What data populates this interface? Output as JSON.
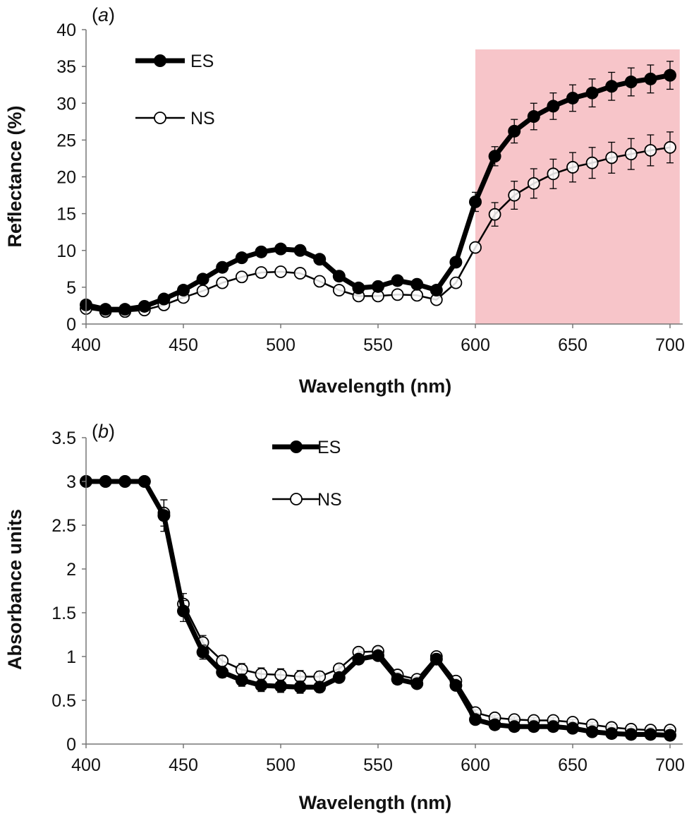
{
  "figure": {
    "panels": [
      {
        "panel_label": "(a)",
        "xlabel": "Wavelength (nm)",
        "ylabel": "Reflectance (%)",
        "legend": [
          "ES",
          "NS"
        ]
      },
      {
        "panel_label": "(b)",
        "xlabel": "Wavelength (nm)",
        "ylabel": "Absorbance units",
        "legend": [
          "ES",
          "NS"
        ]
      }
    ]
  },
  "chart_data": [
    {
      "type": "line",
      "panel_label": "(a)",
      "xlabel": "Wavelength (nm)",
      "ylabel": "Reflectance (%)",
      "xlim": [
        400,
        700
      ],
      "ylim": [
        0,
        40
      ],
      "x_ticks": [
        "400",
        "450",
        "500",
        "550",
        "600",
        "650",
        "700"
      ],
      "y_ticks": [
        "0",
        "5",
        "10",
        "15",
        "20",
        "25",
        "30",
        "35",
        "40"
      ],
      "x_tick_values": [
        400,
        450,
        500,
        550,
        600,
        650,
        700
      ],
      "y_tick_values": [
        0,
        5,
        10,
        15,
        20,
        25,
        30,
        35,
        40
      ],
      "grid": false,
      "legend_position": "top-left",
      "highlight_region": {
        "x_from": 600,
        "x_to": 705,
        "color": "#f7c5c9"
      },
      "x": [
        400,
        410,
        420,
        430,
        440,
        450,
        460,
        470,
        480,
        490,
        500,
        510,
        520,
        530,
        540,
        550,
        560,
        570,
        580,
        590,
        600,
        610,
        620,
        630,
        640,
        650,
        660,
        670,
        680,
        690,
        700
      ],
      "series": [
        {
          "name": "ES",
          "marker": "filled-circle",
          "color": "#000000",
          "values": [
            2.6,
            2.0,
            2.0,
            2.4,
            3.4,
            4.6,
            6.1,
            7.7,
            9.0,
            9.8,
            10.2,
            10.0,
            8.8,
            6.5,
            4.9,
            5.1,
            5.9,
            5.4,
            4.6,
            8.4,
            16.6,
            22.8,
            26.2,
            28.2,
            29.6,
            30.7,
            31.4,
            32.3,
            32.9,
            33.3,
            33.8
          ],
          "errors": [
            0,
            0,
            0,
            0,
            0,
            0,
            0,
            0,
            0,
            0,
            0,
            0,
            0,
            0,
            0,
            0,
            0,
            0,
            0,
            0,
            1.3,
            1.3,
            1.6,
            1.8,
            1.8,
            1.8,
            1.9,
            1.9,
            1.9,
            1.9,
            1.9
          ]
        },
        {
          "name": "NS",
          "marker": "open-circle",
          "color": "#000000",
          "values": [
            2.1,
            1.7,
            1.7,
            1.9,
            2.6,
            3.6,
            4.5,
            5.6,
            6.4,
            7.0,
            7.1,
            6.9,
            5.8,
            4.6,
            3.8,
            3.8,
            4.0,
            3.9,
            3.3,
            5.6,
            10.4,
            14.9,
            17.5,
            19.1,
            20.4,
            21.3,
            21.9,
            22.6,
            23.1,
            23.6,
            24.0
          ],
          "errors": [
            0,
            0,
            0,
            0,
            0,
            0,
            0,
            0,
            0,
            0,
            0,
            0,
            0,
            0,
            0,
            0,
            0,
            0,
            0,
            0,
            0,
            1.6,
            1.9,
            2.0,
            2.0,
            2.0,
            2.1,
            2.1,
            2.1,
            2.1,
            2.1
          ]
        }
      ]
    },
    {
      "type": "line",
      "panel_label": "(b)",
      "xlabel": "Wavelength (nm)",
      "ylabel": "Absorbance units",
      "xlim": [
        400,
        700
      ],
      "ylim": [
        0,
        3.5
      ],
      "x_ticks": [
        "400",
        "450",
        "500",
        "550",
        "600",
        "650",
        "700"
      ],
      "y_ticks": [
        "0",
        "0.5",
        "1",
        "1.5",
        "2",
        "2.5",
        "3",
        "3.5"
      ],
      "x_tick_values": [
        400,
        450,
        500,
        550,
        600,
        650,
        700
      ],
      "y_tick_values": [
        0,
        0.5,
        1,
        1.5,
        2,
        2.5,
        3,
        3.5
      ],
      "grid": false,
      "legend_position": "top-center",
      "x": [
        400,
        410,
        420,
        430,
        440,
        450,
        460,
        470,
        480,
        490,
        500,
        510,
        520,
        530,
        540,
        550,
        560,
        570,
        580,
        590,
        600,
        610,
        620,
        630,
        640,
        650,
        660,
        670,
        680,
        690,
        700
      ],
      "series": [
        {
          "name": "ES",
          "marker": "filled-circle",
          "color": "#000000",
          "values": [
            3.0,
            3.0,
            3.0,
            3.0,
            2.61,
            1.52,
            1.05,
            0.82,
            0.73,
            0.67,
            0.66,
            0.65,
            0.65,
            0.76,
            0.97,
            1.01,
            0.74,
            0.69,
            0.97,
            0.67,
            0.28,
            0.22,
            0.2,
            0.2,
            0.2,
            0.18,
            0.14,
            0.12,
            0.11,
            0.11,
            0.1
          ],
          "errors": [
            0,
            0,
            0,
            0,
            0.18,
            0.12,
            0.08,
            0.06,
            0.07,
            0.07,
            0.07,
            0.07,
            0.06,
            0.05,
            0.04,
            0.04,
            0.03,
            0.03,
            0.03,
            0.03,
            0.03,
            0.03,
            0.03,
            0.03,
            0.03,
            0.03,
            0.03,
            0.03,
            0.03,
            0.03,
            0.03
          ]
        },
        {
          "name": "NS",
          "marker": "open-circle",
          "color": "#000000",
          "values": [
            3.0,
            3.0,
            3.0,
            3.0,
            2.64,
            1.6,
            1.16,
            0.95,
            0.85,
            0.8,
            0.79,
            0.77,
            0.77,
            0.86,
            1.05,
            1.06,
            0.79,
            0.74,
            1.0,
            0.72,
            0.36,
            0.3,
            0.28,
            0.27,
            0.27,
            0.25,
            0.22,
            0.19,
            0.17,
            0.16,
            0.16
          ],
          "errors": [
            0,
            0,
            0,
            0,
            0.15,
            0.12,
            0.08,
            0.06,
            0.07,
            0.07,
            0.07,
            0.07,
            0.06,
            0.05,
            0.04,
            0.04,
            0.03,
            0.03,
            0.03,
            0.03,
            0.03,
            0.03,
            0.03,
            0.03,
            0.03,
            0.03,
            0.03,
            0.03,
            0.03,
            0.03,
            0.03
          ]
        }
      ]
    }
  ]
}
